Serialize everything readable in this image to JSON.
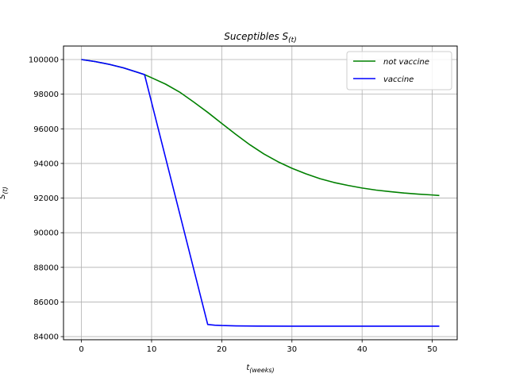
{
  "chart_data": {
    "type": "line",
    "title": "Suceptibles S",
    "title_sub": "(t)",
    "xlabel": "t",
    "xlabel_sub": "(weeks)",
    "ylabel": "S",
    "ylabel_sub": "(t)",
    "xlim": [
      -2.55,
      53.55
    ],
    "ylim": [
      83820,
      100780
    ],
    "xticks": [
      0,
      10,
      20,
      30,
      40,
      50
    ],
    "yticks": [
      84000,
      86000,
      88000,
      90000,
      92000,
      94000,
      96000,
      98000,
      100000
    ],
    "grid": true,
    "legend_position": "top-right",
    "series": [
      {
        "name": "not vaccine",
        "color": "#008000",
        "x": [
          0,
          2,
          4,
          6,
          8,
          9,
          10,
          12,
          14,
          16,
          18,
          20,
          22,
          24,
          26,
          28,
          30,
          32,
          34,
          36,
          38,
          40,
          42,
          44,
          46,
          48,
          50,
          51
        ],
        "y": [
          100000,
          99880,
          99720,
          99520,
          99260,
          99130,
          98950,
          98580,
          98120,
          97550,
          96950,
          96310,
          95680,
          95080,
          94550,
          94100,
          93720,
          93400,
          93120,
          92900,
          92730,
          92580,
          92460,
          92370,
          92290,
          92230,
          92180,
          92150
        ]
      },
      {
        "name": "vaccine",
        "color": "#0000ff",
        "x": [
          0,
          2,
          4,
          6,
          8,
          9,
          18,
          19,
          20,
          22,
          25,
          30,
          40,
          51
        ],
        "y": [
          100000,
          99880,
          99720,
          99520,
          99260,
          99130,
          84700,
          84660,
          84640,
          84620,
          84610,
          84600,
          84600,
          84600
        ]
      }
    ]
  }
}
